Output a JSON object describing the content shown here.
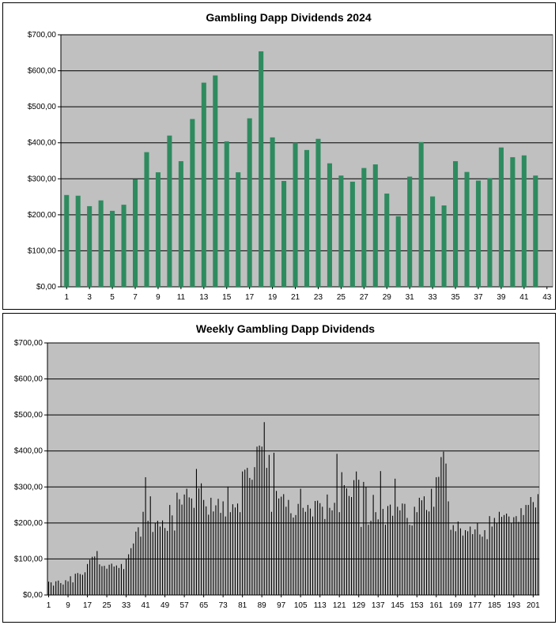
{
  "charts": [
    {
      "title": "Gambling Dapp Dividends 2024",
      "type": "bar",
      "y_ticks": [
        "$0,00",
        "$100,00",
        "$200,00",
        "$300,00",
        "$400,00",
        "$500,00",
        "$600,00",
        "$700,00"
      ],
      "x_ticks": [
        "1",
        "3",
        "5",
        "7",
        "9",
        "11",
        "13",
        "15",
        "17",
        "19",
        "21",
        "23",
        "25",
        "27",
        "29",
        "31",
        "33",
        "35",
        "37",
        "39",
        "41",
        "43"
      ],
      "bar_color": "#2e8b5f",
      "plot_background": "#c0c0c0"
    },
    {
      "title": "Weekly Gambling Dapp Dividends",
      "type": "bar",
      "y_ticks": [
        "$0,00",
        "$100,00",
        "$200,00",
        "$300,00",
        "$400,00",
        "$500,00",
        "$600,00",
        "$700,00"
      ],
      "x_ticks": [
        "1",
        "9",
        "17",
        "25",
        "33",
        "41",
        "49",
        "57",
        "65",
        "73",
        "81",
        "89",
        "97",
        "105",
        "113",
        "121",
        "129",
        "137",
        "145",
        "153",
        "161",
        "169",
        "177",
        "185",
        "193",
        "201"
      ],
      "bar_color": "#000000",
      "plot_background": "#c0c0c0"
    }
  ],
  "chart_data": [
    {
      "type": "bar",
      "title": "Gambling Dapp Dividends 2024",
      "xlabel": "",
      "ylabel": "",
      "ylim": [
        0,
        700
      ],
      "grid": true,
      "categories": [
        1,
        2,
        3,
        4,
        5,
        6,
        7,
        8,
        9,
        10,
        11,
        12,
        13,
        14,
        15,
        16,
        17,
        18,
        19,
        20,
        21,
        22,
        23,
        24,
        25,
        26,
        27,
        28,
        29,
        30,
        31,
        32,
        33,
        34,
        35,
        36,
        37,
        38,
        39,
        40,
        41,
        42
      ],
      "values": [
        255,
        253,
        224,
        240,
        211,
        228,
        299,
        374,
        318,
        420,
        349,
        466,
        567,
        587,
        404,
        318,
        468,
        654,
        415,
        294,
        400,
        380,
        411,
        343,
        309,
        292,
        330,
        340,
        259,
        196,
        306,
        402,
        251,
        226,
        349,
        319,
        295,
        302,
        387,
        360,
        365,
        309
      ]
    },
    {
      "type": "bar",
      "title": "Weekly Gambling Dapp Dividends",
      "xlabel": "",
      "ylabel": "",
      "ylim": [
        0,
        700
      ],
      "grid": true,
      "x_range": [
        1,
        203
      ],
      "values": [
        37,
        35,
        26,
        38,
        40,
        33,
        29,
        41,
        38,
        52,
        35,
        59,
        61,
        58,
        56,
        63,
        86,
        98,
        106,
        107,
        122,
        85,
        80,
        81,
        73,
        84,
        87,
        79,
        82,
        75,
        86,
        72,
        99,
        113,
        130,
        143,
        176,
        188,
        162,
        231,
        327,
        206,
        274,
        175,
        200,
        206,
        190,
        207,
        186,
        178,
        250,
        221,
        179,
        284,
        266,
        251,
        279,
        295,
        271,
        268,
        242,
        350,
        296,
        310,
        264,
        246,
        223,
        270,
        232,
        249,
        267,
        228,
        260,
        218,
        301,
        230,
        252,
        243,
        254,
        230,
        343,
        348,
        353,
        325,
        320,
        355,
        412,
        415,
        412,
        480,
        353,
        389,
        231,
        395,
        289,
        268,
        273,
        280,
        245,
        264,
        227,
        215,
        222,
        253,
        295,
        242,
        231,
        250,
        240,
        218,
        261,
        262,
        255,
        245,
        211,
        279,
        242,
        235,
        256,
        392,
        230,
        341,
        305,
        296,
        275,
        272,
        319,
        343,
        320,
        189,
        314,
        300,
        195,
        206,
        278,
        230,
        210,
        344,
        239,
        195,
        247,
        251,
        220,
        323,
        245,
        235,
        254,
        253,
        214,
        195,
        193,
        245,
        230,
        270,
        263,
        274,
        236,
        232,
        295,
        245,
        327,
        328,
        383,
        398,
        365,
        260,
        181,
        194,
        177,
        204,
        185,
        165,
        180,
        177,
        190,
        169,
        182,
        200,
        168,
        162,
        180,
        155,
        219,
        190,
        214,
        200,
        231,
        217,
        222,
        226,
        218,
        200,
        216,
        219,
        203,
        241,
        222,
        250,
        250,
        272,
        258,
        243,
        280
      ]
    }
  ]
}
